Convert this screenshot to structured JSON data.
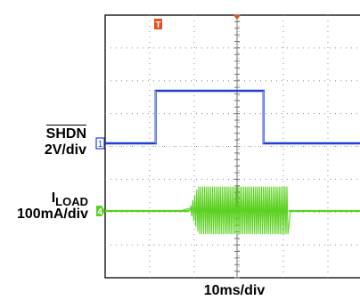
{
  "chart_data": {
    "type": "line",
    "title": "",
    "xlabel": "10ms/div",
    "grid": true,
    "divisions": {
      "x": 10,
      "y": 8
    },
    "x_unit_ms_per_div": 10,
    "channels": [
      {
        "id": "1",
        "name": "SHDN",
        "name_overline": true,
        "scale": "2V/div",
        "color": "#1f3fd6",
        "baseline_div": -0.25,
        "trace": {
          "x_div": [
            0,
            1.55,
            1.55,
            5.55,
            5.55,
            10
          ],
          "y_div": [
            0,
            0,
            1.5,
            1.5,
            0,
            0
          ]
        }
      },
      {
        "id": "4",
        "name": "I",
        "name_subscript": "LOAD",
        "scale": "100mA/div",
        "color": "#5ad11f",
        "baseline_div": -2.1,
        "burst": {
          "start_div": 2.4,
          "end_div": 5.55,
          "amplitude_div": 0.65
        }
      }
    ],
    "trigger": {
      "label": "T",
      "x_div": 1.55,
      "color": "#e5501e"
    }
  }
}
